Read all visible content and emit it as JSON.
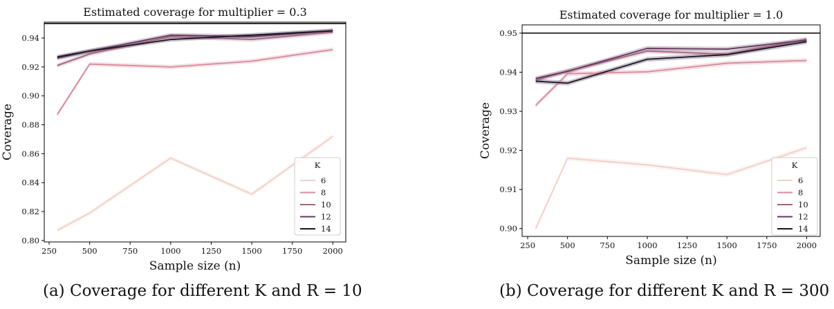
{
  "figures": [
    {
      "caption": "(a) Coverage for different K and R = 10",
      "chart_data": {
        "type": "line",
        "title": "Estimated coverage for multiplier = 0.3",
        "xlabel": "Sample size (n)",
        "ylabel": "Coverage",
        "xlim": [
          220,
          2080
        ],
        "ylim": [
          0.799,
          0.951
        ],
        "xticks": [
          250,
          500,
          750,
          1000,
          1250,
          1500,
          1750,
          2000
        ],
        "yticks": [
          0.8,
          0.82,
          0.84,
          0.86,
          0.88,
          0.9,
          0.92,
          0.94
        ],
        "ytick_labels": [
          "0.80",
          "0.82",
          "0.84",
          "0.86",
          "0.88",
          "0.90",
          "0.92",
          "0.94"
        ],
        "hline": 0.95,
        "ci_band": 0.0015,
        "legend": {
          "title": "K",
          "position": "lower-right"
        },
        "x": [
          300,
          500,
          1000,
          1500,
          2000
        ],
        "series": [
          {
            "name": "6",
            "color": "#f3cfc6",
            "values": [
              0.807,
              0.819,
              0.857,
              0.832,
              0.872
            ]
          },
          {
            "name": "8",
            "color": "#d8899a",
            "values": [
              0.887,
              0.922,
              0.92,
              0.924,
              0.932
            ]
          },
          {
            "name": "10",
            "color": "#a2637f",
            "values": [
              0.921,
              0.929,
              0.941,
              0.939,
              0.944
            ]
          },
          {
            "name": "12",
            "color": "#62395e",
            "values": [
              0.926,
              0.931,
              0.942,
              0.941,
              0.945
            ]
          },
          {
            "name": "14",
            "color": "#1b1226",
            "values": [
              0.927,
              0.931,
              0.939,
              0.942,
              0.945
            ]
          }
        ]
      }
    },
    {
      "caption": "(b) Coverage for different K and R = 300",
      "chart_data": {
        "type": "line",
        "title": "Estimated coverage for multiplier = 1.0",
        "xlabel": "Sample size (n)",
        "ylabel": "Coverage",
        "xlim": [
          215,
          2085
        ],
        "ylim": [
          0.898,
          0.9521
        ],
        "xticks": [
          250,
          500,
          750,
          1000,
          1250,
          1500,
          1750,
          2000
        ],
        "yticks": [
          0.9,
          0.91,
          0.92,
          0.93,
          0.94,
          0.95
        ],
        "ytick_labels": [
          "0.90",
          "0.91",
          "0.92",
          "0.93",
          "0.94",
          "0.95"
        ],
        "hline": 0.95,
        "ci_band": 0.0006,
        "legend": {
          "title": "K",
          "position": "lower-right"
        },
        "x": [
          300,
          500,
          1000,
          1500,
          2000
        ],
        "series": [
          {
            "name": "6",
            "color": "#f3cfc6",
            "values": [
              0.9,
              0.918,
              0.9163,
              0.9138,
              0.9207
            ]
          },
          {
            "name": "8",
            "color": "#d8899a",
            "values": [
              0.9315,
              0.9396,
              0.9401,
              0.9423,
              0.943
            ]
          },
          {
            "name": "10",
            "color": "#a2637f",
            "values": [
              0.938,
              0.9403,
              0.9454,
              0.9446,
              0.9484
            ]
          },
          {
            "name": "12",
            "color": "#62395e",
            "values": [
              0.9384,
              0.9402,
              0.9461,
              0.9459,
              0.9482
            ]
          },
          {
            "name": "14",
            "color": "#1b1226",
            "values": [
              0.9377,
              0.9372,
              0.9433,
              0.9445,
              0.9478
            ]
          }
        ]
      }
    }
  ]
}
